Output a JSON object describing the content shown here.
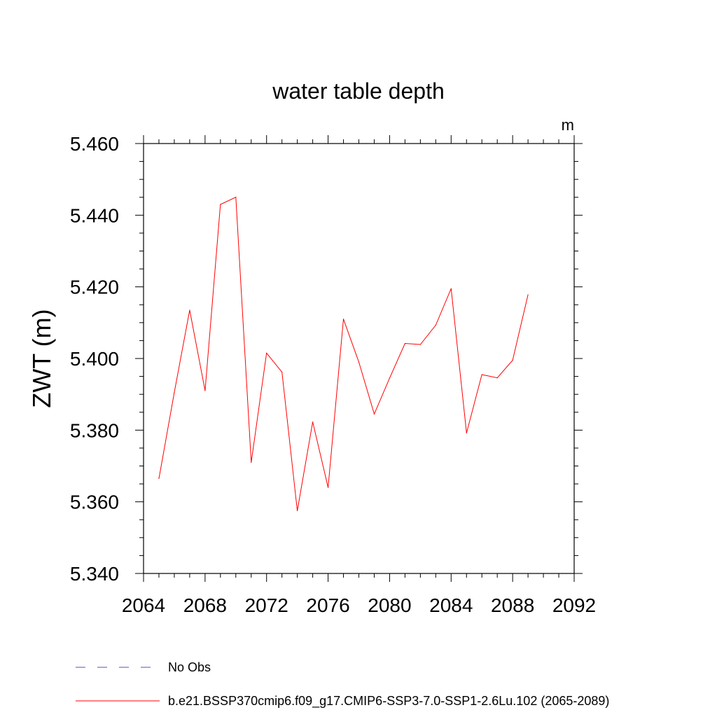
{
  "chart_data": {
    "type": "line",
    "title": "water table depth",
    "units": "m",
    "ylabel": "ZWT  (m)",
    "xlabel": "",
    "xlim": [
      2064,
      2092
    ],
    "ylim": [
      5.34,
      5.46
    ],
    "x_ticks": [
      "2064",
      "2068",
      "2072",
      "2076",
      "2080",
      "2084",
      "2088",
      "2092"
    ],
    "y_ticks": [
      "5.340",
      "5.360",
      "5.380",
      "5.400",
      "5.420",
      "5.440",
      "5.460"
    ],
    "grid": false,
    "legend_position": "bottom",
    "series": [
      {
        "name": "b.e21.BSSP370cmip6.f09_g17.CMIP6-SSP3-7.0-SSP1-2.6Lu.102 (2065-2089)",
        "color": "#ff0000",
        "x": [
          2065,
          2066,
          2067,
          2068,
          2069,
          2070,
          2071,
          2072,
          2073,
          2074,
          2075,
          2076,
          2077,
          2078,
          2079,
          2080,
          2081,
          2082,
          2083,
          2084,
          2085,
          2086,
          2087,
          2088,
          2089
        ],
        "values": [
          5.3665,
          5.3905,
          5.4135,
          5.391,
          5.443,
          5.445,
          5.371,
          5.4015,
          5.3962,
          5.3575,
          5.3823,
          5.364,
          5.411,
          5.399,
          5.3845,
          5.3945,
          5.4042,
          5.4039,
          5.4093,
          5.4195,
          5.3792,
          5.3955,
          5.3946,
          5.3995,
          5.4178
        ]
      }
    ],
    "legend": [
      {
        "label": "No Obs",
        "color": "#5a4fb8",
        "style": "dashed"
      },
      {
        "label": "b.e21.BSSP370cmip6.f09_g17.CMIP6-SSP3-7.0-SSP1-2.6Lu.102 (2065-2089)",
        "color": "#ff0000",
        "style": "solid"
      }
    ]
  }
}
